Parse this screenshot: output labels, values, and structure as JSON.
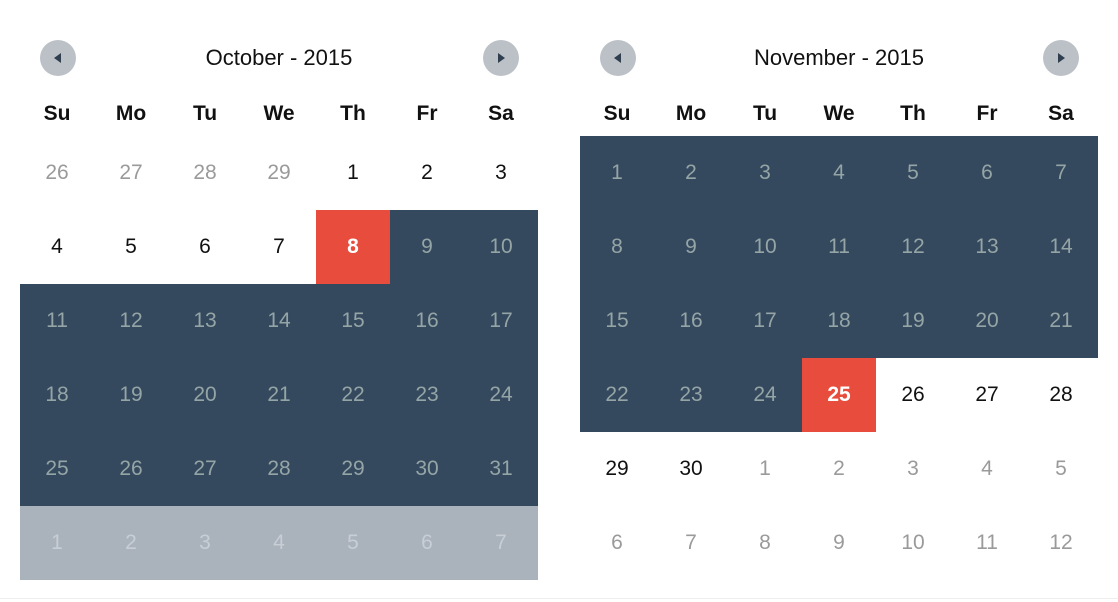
{
  "calendars": [
    {
      "title": "October - 2015",
      "weekdays": [
        "Su",
        "Mo",
        "Tu",
        "We",
        "Th",
        "Fr",
        "Sa"
      ],
      "days": [
        {
          "d": "26",
          "s": "muted"
        },
        {
          "d": "27",
          "s": "muted"
        },
        {
          "d": "28",
          "s": "muted"
        },
        {
          "d": "29",
          "s": "muted"
        },
        {
          "d": "1",
          "s": "normal"
        },
        {
          "d": "2",
          "s": "normal"
        },
        {
          "d": "3",
          "s": "normal"
        },
        {
          "d": "4",
          "s": "normal"
        },
        {
          "d": "5",
          "s": "normal"
        },
        {
          "d": "6",
          "s": "normal"
        },
        {
          "d": "7",
          "s": "normal"
        },
        {
          "d": "8",
          "s": "selected"
        },
        {
          "d": "9",
          "s": "inrange"
        },
        {
          "d": "10",
          "s": "inrange"
        },
        {
          "d": "11",
          "s": "inrange"
        },
        {
          "d": "12",
          "s": "inrange"
        },
        {
          "d": "13",
          "s": "inrange"
        },
        {
          "d": "14",
          "s": "inrange"
        },
        {
          "d": "15",
          "s": "inrange"
        },
        {
          "d": "16",
          "s": "inrange"
        },
        {
          "d": "17",
          "s": "inrange"
        },
        {
          "d": "18",
          "s": "inrange"
        },
        {
          "d": "19",
          "s": "inrange"
        },
        {
          "d": "20",
          "s": "inrange"
        },
        {
          "d": "21",
          "s": "inrange"
        },
        {
          "d": "22",
          "s": "inrange"
        },
        {
          "d": "23",
          "s": "inrange"
        },
        {
          "d": "24",
          "s": "inrange"
        },
        {
          "d": "25",
          "s": "inrange"
        },
        {
          "d": "26",
          "s": "inrange"
        },
        {
          "d": "27",
          "s": "inrange"
        },
        {
          "d": "28",
          "s": "inrange"
        },
        {
          "d": "29",
          "s": "inrange"
        },
        {
          "d": "30",
          "s": "inrange"
        },
        {
          "d": "31",
          "s": "inrange"
        },
        {
          "d": "1",
          "s": "nextrow"
        },
        {
          "d": "2",
          "s": "nextrow"
        },
        {
          "d": "3",
          "s": "nextrow"
        },
        {
          "d": "4",
          "s": "nextrow"
        },
        {
          "d": "5",
          "s": "nextrow"
        },
        {
          "d": "6",
          "s": "nextrow"
        },
        {
          "d": "7",
          "s": "nextrow"
        }
      ]
    },
    {
      "title": "November - 2015",
      "weekdays": [
        "Su",
        "Mo",
        "Tu",
        "We",
        "Th",
        "Fr",
        "Sa"
      ],
      "days": [
        {
          "d": "1",
          "s": "inrange"
        },
        {
          "d": "2",
          "s": "inrange"
        },
        {
          "d": "3",
          "s": "inrange"
        },
        {
          "d": "4",
          "s": "inrange"
        },
        {
          "d": "5",
          "s": "inrange"
        },
        {
          "d": "6",
          "s": "inrange"
        },
        {
          "d": "7",
          "s": "inrange"
        },
        {
          "d": "8",
          "s": "inrange"
        },
        {
          "d": "9",
          "s": "inrange"
        },
        {
          "d": "10",
          "s": "inrange"
        },
        {
          "d": "11",
          "s": "inrange"
        },
        {
          "d": "12",
          "s": "inrange"
        },
        {
          "d": "13",
          "s": "inrange"
        },
        {
          "d": "14",
          "s": "inrange"
        },
        {
          "d": "15",
          "s": "inrange"
        },
        {
          "d": "16",
          "s": "inrange"
        },
        {
          "d": "17",
          "s": "inrange"
        },
        {
          "d": "18",
          "s": "inrange"
        },
        {
          "d": "19",
          "s": "inrange"
        },
        {
          "d": "20",
          "s": "inrange"
        },
        {
          "d": "21",
          "s": "inrange"
        },
        {
          "d": "22",
          "s": "inrange"
        },
        {
          "d": "23",
          "s": "inrange"
        },
        {
          "d": "24",
          "s": "inrange"
        },
        {
          "d": "25",
          "s": "selected"
        },
        {
          "d": "26",
          "s": "normal"
        },
        {
          "d": "27",
          "s": "normal"
        },
        {
          "d": "28",
          "s": "normal"
        },
        {
          "d": "29",
          "s": "normal"
        },
        {
          "d": "30",
          "s": "normal"
        },
        {
          "d": "1",
          "s": "muted"
        },
        {
          "d": "2",
          "s": "muted"
        },
        {
          "d": "3",
          "s": "muted"
        },
        {
          "d": "4",
          "s": "muted"
        },
        {
          "d": "5",
          "s": "muted"
        },
        {
          "d": "6",
          "s": "muted"
        },
        {
          "d": "7",
          "s": "muted"
        },
        {
          "d": "8",
          "s": "muted"
        },
        {
          "d": "9",
          "s": "muted"
        },
        {
          "d": "10",
          "s": "muted"
        },
        {
          "d": "11",
          "s": "muted"
        },
        {
          "d": "12",
          "s": "muted"
        }
      ]
    }
  ],
  "nav_icons": {
    "prev": "arrow-left-icon",
    "next": "arrow-right-icon"
  },
  "colors": {
    "range_bg": "#34495e",
    "range_text": "#95a5a6",
    "selected_bg": "#e74c3c",
    "nav_bg": "#bcc1c8",
    "nav_arrow": "#2f3f50",
    "highlight_next_month_bg": "#aab2bc"
  }
}
